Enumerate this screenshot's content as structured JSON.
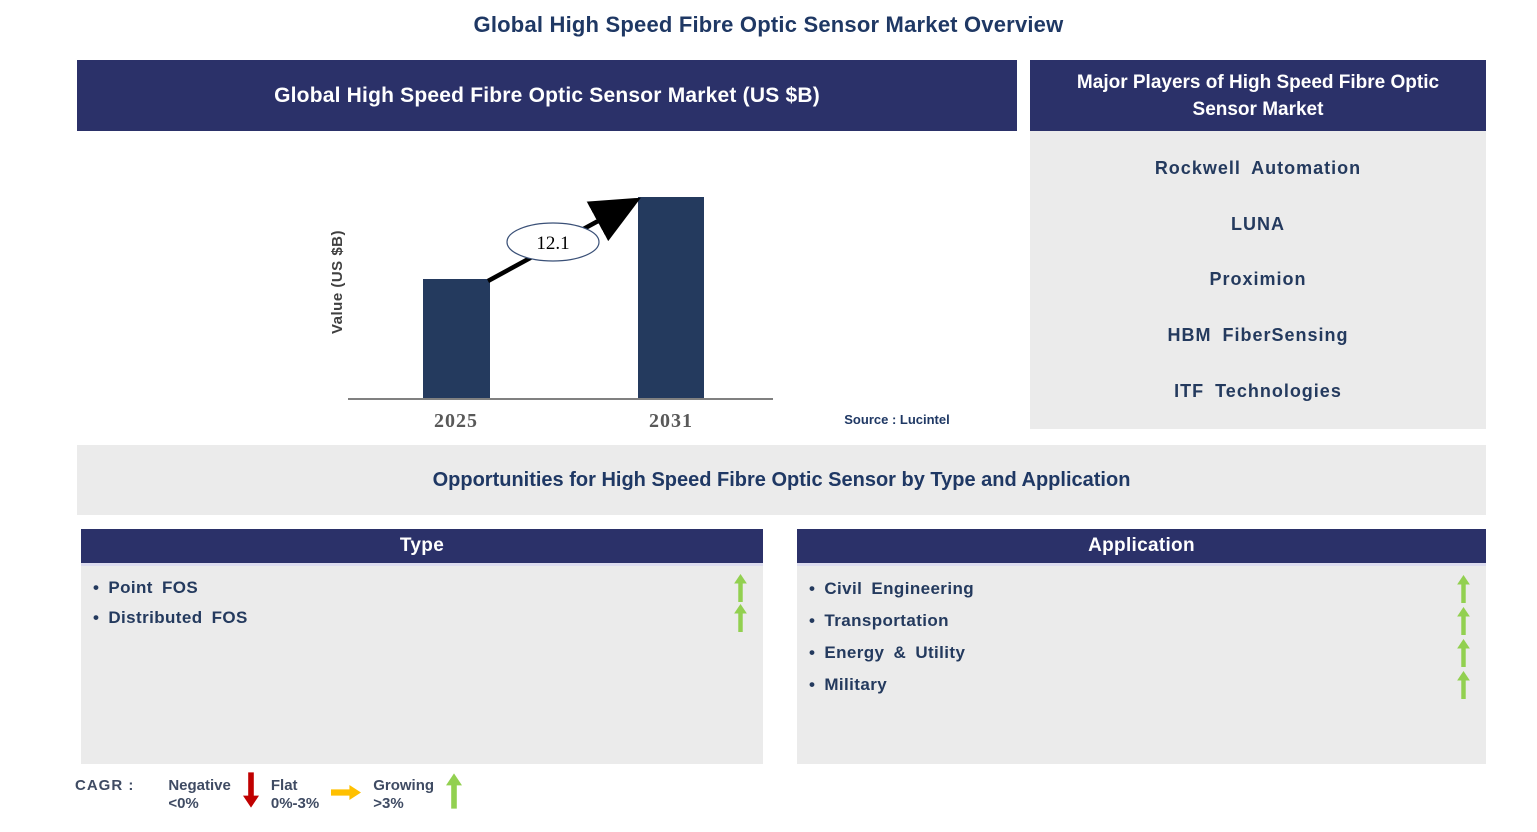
{
  "page_title": "Global High Speed Fibre Optic Sensor Market Overview",
  "market_panel": {
    "header": "Global High Speed Fibre Optic Sensor Market (US $B)",
    "source": "Source : Lucintel"
  },
  "chart_data": {
    "type": "bar",
    "title": "Global High Speed Fibre Optic Sensor Market (US $B)",
    "categories": [
      "2025",
      "2031"
    ],
    "values": [
      7.2,
      12.1
    ],
    "values_estimated_from_bar_heights": true,
    "xlabel": "",
    "ylabel": "Value (US $B)",
    "arrow_annotation": "12.1",
    "bar_color": "#243A5E",
    "grid": false,
    "legend_shown": false
  },
  "major_players": {
    "header": "Major Players of High Speed Fibre Optic Sensor Market",
    "companies": [
      "Rockwell Automation",
      "LUNA",
      "Proximion",
      "HBM FiberSensing",
      "ITF Technologies"
    ]
  },
  "opportunities_banner": "Opportunities for High Speed Fibre Optic Sensor by Type and Application",
  "type_panel": {
    "header": "Type",
    "items": [
      {
        "label": "Point FOS",
        "trend": "growing"
      },
      {
        "label": "Distributed FOS",
        "trend": "growing"
      }
    ]
  },
  "application_panel": {
    "header": "Application",
    "items": [
      {
        "label": "Civil Engineering",
        "trend": "growing"
      },
      {
        "label": "Transportation",
        "trend": "growing"
      },
      {
        "label": "Energy & Utility",
        "trend": "growing"
      },
      {
        "label": "Military",
        "trend": "growing"
      }
    ]
  },
  "cagr_legend": {
    "prefix": "CAGR :",
    "items": [
      {
        "label": "Negative",
        "range": "<0%",
        "arrow": "down",
        "color": "#C00000"
      },
      {
        "label": "Flat",
        "range": "0%-3%",
        "arrow": "right",
        "color": "#FFC000"
      },
      {
        "label": "Growing",
        "range": ">3%",
        "arrow": "up",
        "color": "#92D050"
      }
    ]
  },
  "colors": {
    "header_navy": "#2B3169",
    "bar_navy": "#243A5E",
    "panel_gray": "#EBEBEB",
    "title_navy": "#1F3864",
    "tick_gray": "#595959",
    "growing_green": "#92D050",
    "negative_red": "#C00000",
    "flat_orange": "#FFC000"
  }
}
